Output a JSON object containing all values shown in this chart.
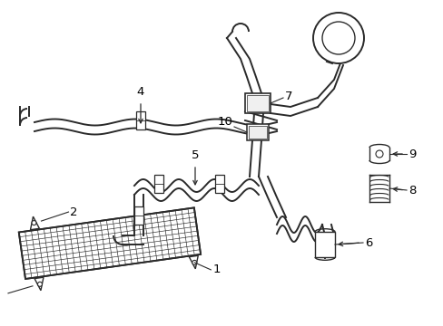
{
  "bg_color": "#ffffff",
  "lc": "#2a2a2a",
  "lw": 1.4,
  "fig_w": 4.89,
  "fig_h": 3.6,
  "xlim": [
    0,
    489
  ],
  "ylim": [
    0,
    360
  ]
}
